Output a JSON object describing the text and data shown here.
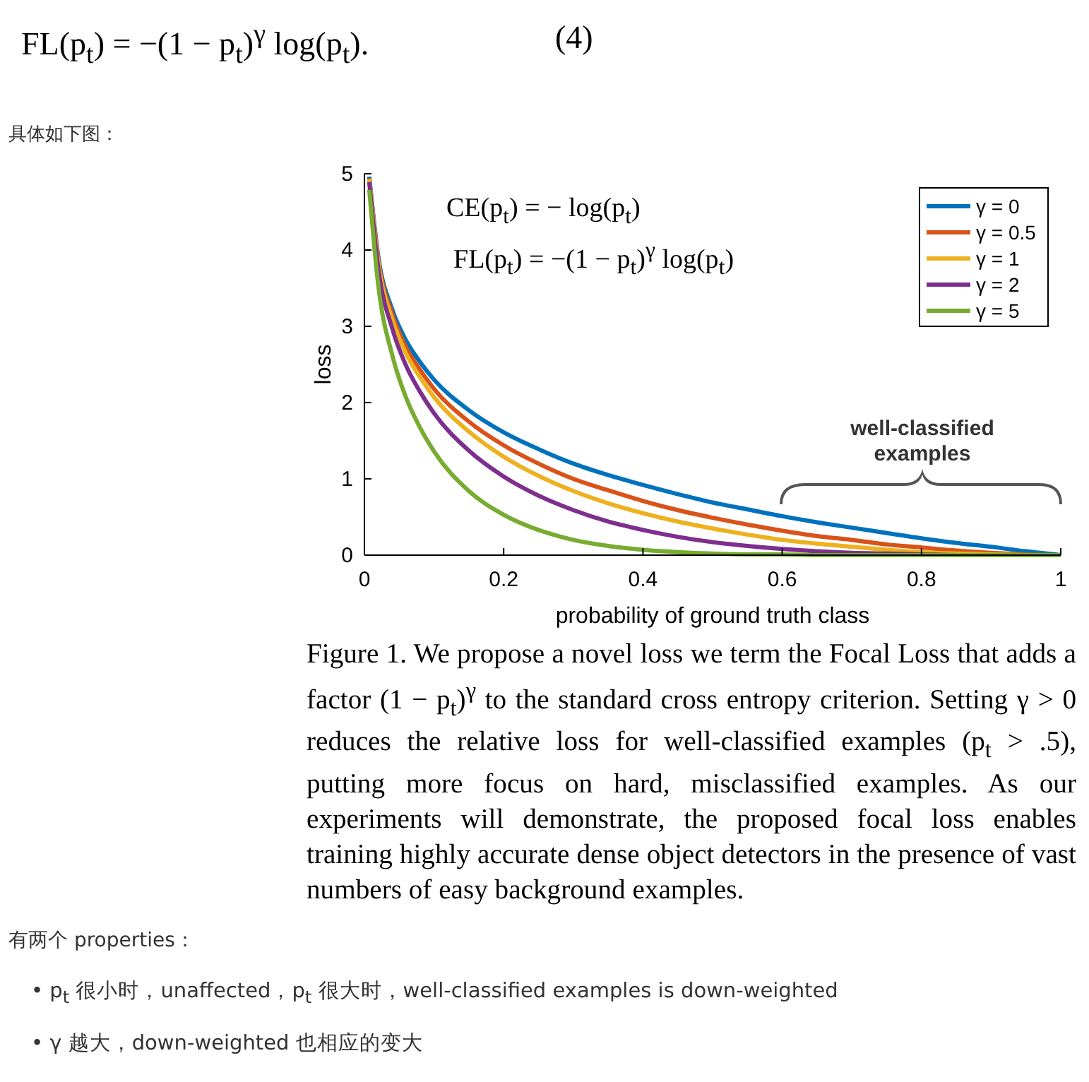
{
  "chart_data": {
    "type": "line",
    "xlabel": "probability of ground truth class",
    "ylabel": "loss",
    "x": [
      0.007,
      0.02,
      0.04,
      0.06,
      0.08,
      0.1,
      0.15,
      0.2,
      0.25,
      0.3,
      0.35,
      0.4,
      0.45,
      0.5,
      0.55,
      0.6,
      0.65,
      0.7,
      0.75,
      0.8,
      0.85,
      0.9,
      0.95,
      1
    ],
    "series": [
      {
        "name": "γ = 0",
        "color": "#0072bd",
        "values": [
          4.96,
          3.91,
          3.22,
          2.81,
          2.53,
          2.3,
          1.9,
          1.61,
          1.39,
          1.2,
          1.05,
          0.92,
          0.8,
          0.69,
          0.6,
          0.51,
          0.43,
          0.36,
          0.29,
          0.22,
          0.16,
          0.11,
          0.05,
          0
        ]
      },
      {
        "name": "γ = 0.5",
        "color": "#d95319",
        "values": [
          4.94,
          3.87,
          3.16,
          2.72,
          2.43,
          2.18,
          1.75,
          1.44,
          1.2,
          1.0,
          0.85,
          0.71,
          0.59,
          0.49,
          0.4,
          0.32,
          0.25,
          0.2,
          0.14,
          0.1,
          0.06,
          0.03,
          0.01,
          0
        ]
      },
      {
        "name": "γ = 1",
        "color": "#edb120",
        "values": [
          4.93,
          3.83,
          3.09,
          2.64,
          2.33,
          2.07,
          1.62,
          1.29,
          1.04,
          0.84,
          0.68,
          0.55,
          0.44,
          0.35,
          0.27,
          0.2,
          0.15,
          0.11,
          0.07,
          0.04,
          0.02,
          0.01,
          0,
          0
        ]
      },
      {
        "name": "γ = 2",
        "color": "#7e2f8e",
        "values": [
          4.89,
          3.75,
          2.97,
          2.48,
          2.14,
          1.86,
          1.37,
          1.03,
          0.78,
          0.59,
          0.44,
          0.33,
          0.24,
          0.17,
          0.12,
          0.08,
          0.05,
          0.03,
          0.02,
          0.01,
          0,
          0,
          null,
          null
        ]
      },
      {
        "name": "γ = 5",
        "color": "#77ac30",
        "values": [
          4.79,
          3.53,
          2.62,
          2.06,
          1.67,
          1.36,
          0.84,
          0.53,
          0.33,
          0.2,
          0.12,
          0.07,
          0.04,
          0.02,
          0.01,
          0.01,
          0,
          0,
          0,
          0,
          0,
          0,
          0,
          0
        ]
      }
    ],
    "xlim": [
      0,
      1
    ],
    "xticks": [
      0,
      0.2,
      0.4,
      0.6,
      0.8,
      1
    ],
    "ylim": [
      0,
      5
    ],
    "yticks": [
      0,
      1,
      2,
      3,
      4,
      5
    ],
    "legend": "top right",
    "grid": false,
    "marker": "none",
    "line_style": "solid",
    "annotations": [
      "FL(p$_{t}$) = −(1 − p$_{t}$)$^{γ}$ log(p$_{t}$).",
      "(4)",
      "具体如下图：",
      "CE(p$_{t}$) = − log(p$_{t}$)",
      "FL(p$_{t}$) = −(1 − p$_{t}$)$^{γ}$ log(p$_{t}$)",
      "well-classified examples",
      "Figure 1. We propose a novel loss we term the Focal Loss that adds a factor (1 − p$_{t}$)$^{γ}$ to the standard cross entropy criterion. Setting γ > 0 reduces the relative loss for well-classified examples (p$_{t}$ > .5), putting more focus on hard, misclassified examples. As our experiments will demonstrate, the proposed focal loss enables training highly accurate dense object detectors in the presence of vast numbers of easy background examples.",
      "有两个 properties：",
      "• p$_{t}$ 很小时，unaffected，p$_{t}$ 很大时，well-classified examples is down-weighted",
      "• γ 越大，down-weighted 也相应的变大"
    ]
  }
}
